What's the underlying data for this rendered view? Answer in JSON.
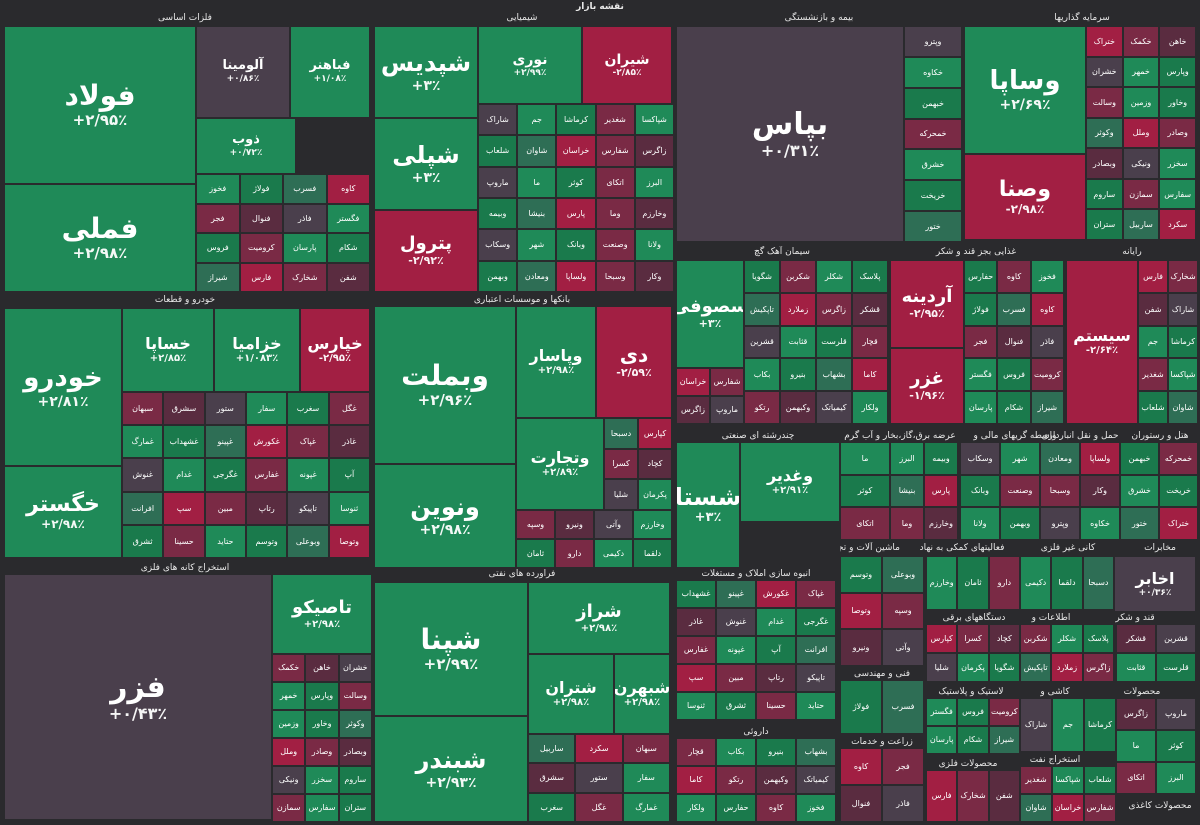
{
  "title": "نقشه بازار",
  "sectors": [
    "فلزات اساسی",
    "شیمیایی",
    "بیمه و بازنشستگی",
    "سرمایه گذاریها",
    "خودرو و قطعات",
    "بانکها و موسسات اعتباری",
    "سیمان آهک گچ",
    "غذایی بجز قند و شکر",
    "رایانه",
    "چندرشته ای صنعتی",
    "عرضه برق،گاز،بخار و آب گرم",
    "واسطه گریهای مالی و",
    "حمل و نقل انبارداری",
    "هتل و رستوران",
    "استخراج کانه های فلزی",
    "فراورده های نفتی",
    "انبوه سازی املاک و مستغلات",
    "ماشین آلات و تجهیزات",
    "فعالیتهای کمکی به نهاد",
    "کانی غیر فلزی",
    "مخابرات",
    "دستگاههای برقی",
    "اطلاعات و",
    "قند و شکر",
    "فنی و مهندسی",
    "لاستیک و پلاستیک",
    "کاشی و",
    "محصولات",
    "داروئی",
    "زراعت و خدمات",
    "محصولات فلزی",
    "استخراج نفت",
    "محصولات کاغذی"
  ],
  "major_tiles": [
    {
      "name": "فولاد",
      "change": "+۲/۹۵٪",
      "status": "up"
    },
    {
      "name": "فملی",
      "change": "+۲/۹۸٪",
      "status": "up"
    },
    {
      "name": "آلومینا",
      "change": "+۰/۸۶٪",
      "status": "neutral"
    },
    {
      "name": "فباهنر",
      "change": "+۱/۰۸٪",
      "status": "up"
    },
    {
      "name": "ذوب",
      "change": "+۰/۷۲٪",
      "status": "up"
    },
    {
      "name": "شپدیس",
      "change": "+۳٪",
      "status": "up"
    },
    {
      "name": "شپلی",
      "change": "+۳٪",
      "status": "up"
    },
    {
      "name": "پترول",
      "change": "-۲/۹۲٪",
      "status": "down"
    },
    {
      "name": "نوری",
      "change": "+۲/۹۹٪",
      "status": "up"
    },
    {
      "name": "شیران",
      "change": "-۲/۸۵٪",
      "status": "down"
    },
    {
      "name": "بپاس",
      "change": "+۰/۳۱٪",
      "status": "neutral"
    },
    {
      "name": "وساپا",
      "change": "+۲/۶۹٪",
      "status": "up"
    },
    {
      "name": "وصنا",
      "change": "-۲/۹۸٪",
      "status": "down"
    },
    {
      "name": "خودرو",
      "change": "+۲/۸۱٪",
      "status": "up"
    },
    {
      "name": "خگستر",
      "change": "+۲/۹۸٪",
      "status": "up"
    },
    {
      "name": "خساپا",
      "change": "+۲/۸۵٪",
      "status": "up"
    },
    {
      "name": "خزامیا",
      "change": "+۱/۰۸۳٪",
      "status": "up"
    },
    {
      "name": "خپارس",
      "change": "-۲/۹۵٪",
      "status": "down"
    },
    {
      "name": "وبملت",
      "change": "+۲/۹۶٪",
      "status": "up"
    },
    {
      "name": "ونوین",
      "change": "+۲/۹۸٪",
      "status": "up"
    },
    {
      "name": "وپاسار",
      "change": "+۲/۹۸٪",
      "status": "up"
    },
    {
      "name": "دی",
      "change": "-۲/۵۹٪",
      "status": "down"
    },
    {
      "name": "وتجارت",
      "change": "+۲/۸۹٪",
      "status": "up"
    },
    {
      "name": "سصوفی",
      "change": "+۳٪",
      "status": "up"
    },
    {
      "name": "آردینه",
      "change": "-۲/۹۵٪",
      "status": "down"
    },
    {
      "name": "غزر",
      "change": "-۱/۹۶٪",
      "status": "down"
    },
    {
      "name": "سیستم",
      "change": "-۲/۶۴٪",
      "status": "down"
    },
    {
      "name": "شستا",
      "change": "+۳٪",
      "status": "up"
    },
    {
      "name": "وغدیر",
      "change": "+۲/۹۱٪",
      "status": "up"
    },
    {
      "name": "فزر",
      "change": "+۰/۴۳٪",
      "status": "neutral"
    },
    {
      "name": "تاصیکو",
      "change": "+۲/۹۸٪",
      "status": "up"
    },
    {
      "name": "شپنا",
      "change": "+۲/۹۹٪",
      "status": "up"
    },
    {
      "name": "شبندر",
      "change": "+۲/۹۳٪",
      "status": "up"
    },
    {
      "name": "شراز",
      "change": "+۲/۹۸٪",
      "status": "up"
    },
    {
      "name": "شتران",
      "change": "+۲/۹۸٪",
      "status": "up"
    },
    {
      "name": "شبهرن",
      "change": "+۲/۹۸٪",
      "status": "up"
    },
    {
      "name": "اخابر",
      "change": "+۰/۳۶٪",
      "status": "neutral"
    }
  ],
  "small_tiles": [
    "فخوز",
    "فولاژ",
    "فسرب",
    "کاوه",
    "فجر",
    "فنوال",
    "فاذر",
    "فگستر",
    "فروس",
    "کرومیت",
    "پارسان",
    "شکام",
    "شیراز",
    "فارس",
    "شخارک",
    "شفن",
    "شاراک",
    "جم",
    "کرماشا",
    "شغدیر",
    "شپاکسا",
    "شلعاب",
    "شاوان",
    "خراسان",
    "شفارس",
    "زاگرس",
    "ماروپ",
    "ما",
    "کوثر",
    "اتکای",
    "البرز",
    "وبیمه",
    "بنیشا",
    "پارس",
    "وما",
    "وخارزم",
    "وسکاب",
    "شهر",
    "وبانک",
    "وصنعت",
    "ولانا",
    "وبهمن",
    "ومعادن",
    "ولساپا",
    "وسبحا",
    "وکار",
    "وپترو",
    "خکاوه",
    "خبهمن",
    "خمحرکه",
    "خشرق",
    "خریخت",
    "ختور",
    "ختراک",
    "خکمک",
    "خاهن",
    "خشران",
    "خمهر",
    "وپارس",
    "وسالت",
    "وزمین",
    "وخاور",
    "وکوثر",
    "وملل",
    "وصادر",
    "وبصادر",
    "ونیکی",
    "سخزر",
    "ساروم",
    "سمازن",
    "سفارس",
    "ستران",
    "ساربیل",
    "سکرد",
    "سبهان",
    "سشرق",
    "ستور",
    "سفار",
    "سغرب",
    "غگل",
    "غمارگ",
    "غشهداب",
    "غپینو",
    "غکورش",
    "غپاک",
    "غاذر",
    "غنوش",
    "غدام",
    "غگرجی",
    "غفارس",
    "غپونه",
    "آپ",
    "افرانت",
    "سپ",
    "مبین",
    "رتاپ",
    "تاپیکو",
    "ثنوسا",
    "ثشرق",
    "حسینا",
    "حتاید",
    "وتوسم",
    "وبوعلی",
    "وتوصا",
    "وسپه",
    "ونیرو",
    "وآتی",
    "وخارزم",
    "ثامان",
    "دارو",
    "دکیمی",
    "دلقما",
    "دسبحا",
    "کپارس",
    "کسرا",
    "کچاد",
    "شلیا",
    "پکرمان",
    "شگویا",
    "شکربن",
    "شکلر",
    "پلاسک",
    "تاپکیش",
    "زملارد",
    "زاگرس",
    "قشکر",
    "قشرین",
    "قثابت",
    "قلرست",
    "قچار",
    "بکاب",
    "بنیرو",
    "بشهاب",
    "کاما",
    "رتکو",
    "وکبهمن",
    "کیمیاتک",
    "ولکار",
    "حفارس",
    "کاوه"
  ]
}
